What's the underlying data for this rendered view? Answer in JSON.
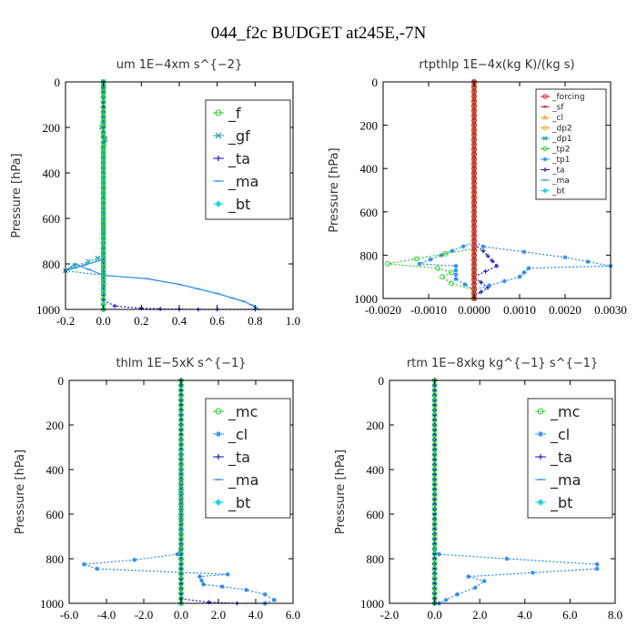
{
  "figure_title": "044_f2c  BUDGET at245E,-7N",
  "colors": {
    "green": "#2ecc2e",
    "teal": "#14a6a6",
    "navy": "#1a1acc",
    "lightblue": "#2a8cf0",
    "cyan": "#18d8e8",
    "red": "#dd1a1a",
    "orange": "#f0a830",
    "sf_red": "#cc3b3b",
    "axis": "#000000"
  },
  "chart_data": [
    {
      "type": "line",
      "title": "um   1E−4xm s^{−2}",
      "ylabel": "Pressure [hPa]",
      "xlim": [
        -0.2,
        1.0
      ],
      "ylim": [
        1000,
        0
      ],
      "xticks": [
        "-0.2",
        "0.0",
        "0.2",
        "0.4",
        "0.6",
        "0.8",
        "1.0"
      ],
      "xtick_values": [
        -0.2,
        0.0,
        0.2,
        0.4,
        0.6,
        0.8,
        1.0
      ],
      "yticks": [
        "0",
        "200",
        "400",
        "600",
        "800",
        "1000"
      ],
      "ytick_values": [
        0,
        200,
        400,
        600,
        800,
        1000
      ],
      "legend": {
        "position": "top-right",
        "size": "large"
      },
      "series": [
        {
          "name": "_f",
          "color": "green",
          "marker": "o",
          "x": [
            0,
            0
          ],
          "y": [
            0,
            1000
          ]
        },
        {
          "name": "_gf",
          "color": "teal",
          "marker": "x",
          "x": [
            0,
            0,
            0,
            -0.01,
            0.01,
            0,
            0,
            0,
            0,
            0,
            -0.03,
            -0.08,
            -0.15,
            -0.2,
            0
          ],
          "y": [
            0,
            100,
            180,
            200,
            250,
            290,
            400,
            600,
            700,
            760,
            775,
            790,
            810,
            830,
            850
          ]
        },
        {
          "name": "_ta",
          "color": "navy",
          "marker": "+",
          "x": [
            0,
            0,
            0,
            0.06,
            0.2,
            0.3,
            0.4,
            0.5,
            0.6,
            0.8
          ],
          "y": [
            0,
            900,
            960,
            985,
            995,
            998,
            999,
            1000,
            1000,
            1000
          ]
        },
        {
          "name": "_ma",
          "color": "lightblue",
          "marker": "-",
          "x": [
            0,
            -0.2,
            -0.15,
            0,
            0.23,
            0.4,
            0.5,
            0.6,
            0.68,
            0.74,
            0.78,
            0.8,
            0.82
          ],
          "y": [
            780,
            830,
            800,
            850,
            865,
            890,
            910,
            930,
            950,
            965,
            980,
            990,
            1000
          ]
        },
        {
          "name": "_bt",
          "color": "cyan",
          "marker": "diamond",
          "x": [
            0,
            0
          ],
          "y": [
            0,
            1000
          ]
        }
      ]
    },
    {
      "type": "line",
      "title": "rtpthlp   1E−4x(kg K)/(kg s)",
      "ylabel": "Pressure [hPa]",
      "xlim": [
        -0.002,
        0.003
      ],
      "ylim": [
        1000,
        0
      ],
      "xticks": [
        "-0.0020",
        "-0.0010",
        "0.0000",
        "0.0010",
        "0.0020",
        "0.0030"
      ],
      "xtick_values": [
        -0.002,
        -0.001,
        0.0,
        0.001,
        0.002,
        0.003
      ],
      "yticks": [
        "0",
        "200",
        "400",
        "600",
        "800",
        "1000"
      ],
      "ytick_values": [
        0,
        200,
        400,
        600,
        800,
        1000
      ],
      "legend": {
        "position": "top-right",
        "size": "small"
      },
      "series": [
        {
          "name": "_forcing",
          "color": "red",
          "marker": "o",
          "x": [
            0,
            0
          ],
          "y": [
            0,
            1000
          ]
        },
        {
          "name": "_sf",
          "color": "sf_red",
          "marker": "v",
          "x": [
            0,
            0
          ],
          "y": [
            0,
            1000
          ]
        },
        {
          "name": "_cl",
          "color": "orange",
          "marker": "^",
          "x": [
            0,
            0
          ],
          "y": [
            0,
            1000
          ]
        },
        {
          "name": "_dp2",
          "color": "orange",
          "marker": "o",
          "x": [
            0,
            0
          ],
          "y": [
            0,
            1000
          ]
        },
        {
          "name": "_dp1",
          "color": "teal",
          "marker": "x",
          "x": [
            0,
            0
          ],
          "y": [
            0,
            1000
          ]
        },
        {
          "name": "_tp2",
          "color": "green",
          "marker": "o",
          "x": [
            0,
            -0.0019,
            -0.0008,
            -0.0005,
            -0.0007,
            -0.0005,
            0
          ],
          "y": [
            770,
            840,
            860,
            880,
            900,
            930,
            960
          ]
        },
        {
          "name": "_tp1",
          "color": "lightblue",
          "marker": "*",
          "x": [
            0,
            -0.0012,
            -0.0004,
            -0.0004,
            0,
            0.001,
            0.0012,
            0.003,
            0.002,
            0.0002,
            0
          ],
          "y": [
            740,
            840,
            850,
            910,
            960,
            900,
            860,
            850,
            810,
            760,
            740
          ]
        },
        {
          "name": "_ta",
          "color": "navy",
          "marker": "+",
          "x": [
            0,
            0.0002,
            0.0005,
            0,
            0.0003,
            0
          ],
          "y": [
            750,
            780,
            850,
            900,
            950,
            990
          ]
        },
        {
          "name": "_ma",
          "color": "lightblue",
          "marker": "-",
          "x": [
            0,
            0
          ],
          "y": [
            0,
            1000
          ]
        },
        {
          "name": "_bt",
          "color": "cyan",
          "marker": "diamond",
          "x": [
            0,
            0
          ],
          "y": [
            0,
            1000
          ]
        }
      ]
    },
    {
      "type": "line",
      "title": "thlm   1E−5xK s^{−1}",
      "ylabel": "Pressure [hPa]",
      "xlim": [
        -6.0,
        6.0
      ],
      "ylim": [
        1000,
        0
      ],
      "xticks": [
        "-6.0",
        "-4.0",
        "-2.0",
        "0.0",
        "2.0",
        "4.0",
        "6.0"
      ],
      "xtick_values": [
        -6.0,
        -4.0,
        -2.0,
        0.0,
        2.0,
        4.0,
        6.0
      ],
      "yticks": [
        "0",
        "200",
        "400",
        "600",
        "800",
        "1000"
      ],
      "ytick_values": [
        0,
        200,
        400,
        600,
        800,
        1000
      ],
      "legend": {
        "position": "top-right",
        "size": "large"
      },
      "series": [
        {
          "name": "_mc",
          "color": "green",
          "marker": "o",
          "x": [
            0,
            0
          ],
          "y": [
            0,
            1000
          ]
        },
        {
          "name": "_cl",
          "color": "lightblue",
          "marker": "*",
          "x": [
            0,
            -0.2,
            -2.5,
            -5.2,
            -4.5,
            2.5,
            1.0,
            1.2,
            2.2,
            3.5,
            4.5,
            5.0,
            4.5
          ],
          "y": [
            750,
            780,
            805,
            825,
            845,
            870,
            880,
            915,
            925,
            940,
            960,
            985,
            1000
          ]
        },
        {
          "name": "_ta",
          "color": "navy",
          "marker": "+",
          "x": [
            0,
            0,
            1.5,
            3.0,
            4.5
          ],
          "y": [
            0,
            980,
            995,
            1000,
            1000
          ]
        },
        {
          "name": "_ma",
          "color": "lightblue",
          "marker": "-",
          "x": [
            0,
            0
          ],
          "y": [
            0,
            1000
          ]
        },
        {
          "name": "_bt",
          "color": "cyan",
          "marker": "diamond",
          "x": [
            0,
            0
          ],
          "y": [
            0,
            1000
          ]
        }
      ]
    },
    {
      "type": "line",
      "title": "rtm   1E−8xkg kg^{−1} s^{−1}",
      "ylabel": "Pressure [hPa]",
      "xlim": [
        -2.0,
        8.0
      ],
      "ylim": [
        1000,
        0
      ],
      "xticks": [
        "-2.0",
        "0.0",
        "2.0",
        "4.0",
        "6.0",
        "8.0"
      ],
      "xtick_values": [
        -2.0,
        0.0,
        2.0,
        4.0,
        6.0,
        8.0
      ],
      "yticks": [
        "0",
        "200",
        "400",
        "600",
        "800",
        "1000"
      ],
      "ytick_values": [
        0,
        200,
        400,
        600,
        800,
        1000
      ],
      "legend": {
        "position": "top-right",
        "size": "large"
      },
      "series": [
        {
          "name": "_mc",
          "color": "green",
          "marker": "o",
          "x": [
            0,
            0
          ],
          "y": [
            0,
            1000
          ]
        },
        {
          "name": "_cl",
          "color": "lightblue",
          "marker": "*",
          "x": [
            0,
            0.2,
            3.2,
            7.2,
            7.2,
            1.5,
            2.2,
            1.8,
            1.0,
            0.5,
            0.2
          ],
          "y": [
            760,
            780,
            800,
            825,
            845,
            880,
            900,
            930,
            960,
            985,
            1000
          ]
        },
        {
          "name": "_ta",
          "color": "navy",
          "marker": "+",
          "x": [
            0,
            0
          ],
          "y": [
            0,
            1000
          ]
        },
        {
          "name": "_ma",
          "color": "lightblue",
          "marker": "-",
          "x": [
            0,
            0
          ],
          "y": [
            0,
            1000
          ]
        },
        {
          "name": "_bt",
          "color": "cyan",
          "marker": "diamond",
          "x": [
            0,
            0
          ],
          "y": [
            0,
            1000
          ]
        }
      ]
    }
  ]
}
